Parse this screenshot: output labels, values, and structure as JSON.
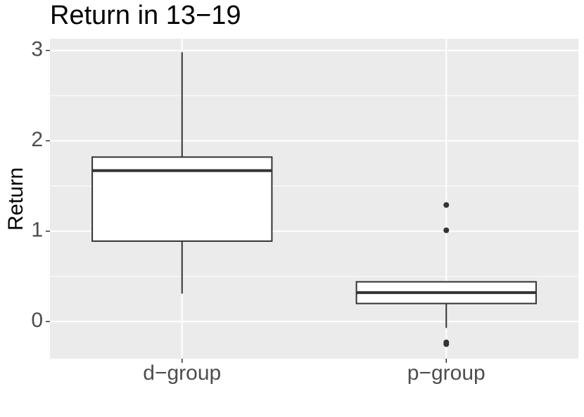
{
  "chart_data": {
    "type": "boxplot",
    "title": "Return in 13−19",
    "ylabel": "Return",
    "categories": [
      "d−group",
      "p−group"
    ],
    "boxes": [
      {
        "min": 0.31,
        "q1": 0.89,
        "median": 1.67,
        "q3": 1.82,
        "max": 2.98,
        "outliers": []
      },
      {
        "min": -0.07,
        "q1": 0.2,
        "median": 0.32,
        "q3": 0.44,
        "max": 0.44,
        "outliers": [
          1.29,
          1.01,
          -0.23,
          -0.25
        ]
      }
    ],
    "ylim": [
      -0.41,
      3.13
    ],
    "yticks": [
      0,
      1,
      2,
      3
    ],
    "y_minor_grid": [
      0.5,
      1.5,
      2.5
    ],
    "grid": true,
    "panel_color": "#ebebeb",
    "box_fill": "#ffffff",
    "line_color": "#333333"
  }
}
